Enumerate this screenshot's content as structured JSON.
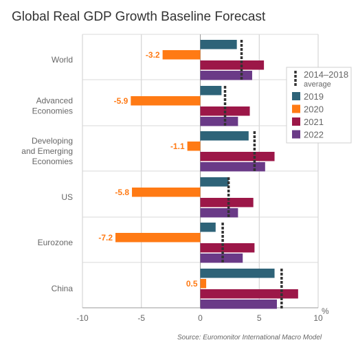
{
  "chart_data": {
    "type": "bar",
    "orientation": "horizontal",
    "title": "Global Real GDP Growth Baseline Forecast",
    "categories": [
      "World",
      "Advanced Economies",
      "Developing and Emerging Economies",
      "US",
      "Eurozone",
      "China"
    ],
    "category_display": [
      [
        "World"
      ],
      [
        "Advanced",
        "Economies"
      ],
      [
        "Developing",
        "and Emerging",
        "Economies"
      ],
      [
        "US"
      ],
      [
        "Eurozone"
      ],
      [
        "China"
      ]
    ],
    "series": [
      {
        "name": "2019",
        "color": "#2e6378",
        "values": [
          3.1,
          1.8,
          4.1,
          2.4,
          1.3,
          6.3
        ]
      },
      {
        "name": "2020",
        "color": "#ff7a14",
        "values": [
          -3.2,
          -5.9,
          -1.1,
          -5.8,
          -7.2,
          0.5
        ]
      },
      {
        "name": "2021",
        "color": "#9c1748",
        "values": [
          5.4,
          4.2,
          6.3,
          4.5,
          4.6,
          8.3
        ]
      },
      {
        "name": "2022",
        "color": "#6a3a87",
        "values": [
          4.4,
          3.2,
          5.5,
          3.2,
          3.6,
          6.5
        ]
      }
    ],
    "average": {
      "name": "2014–2018 average",
      "values": [
        3.5,
        2.1,
        4.6,
        2.4,
        1.9,
        6.9
      ],
      "color": "#333333"
    },
    "data_labels": {
      "series": "2020",
      "values": [
        "-3.2",
        "-5.9",
        "-1.1",
        "-5.8",
        "-7.2",
        "0.5"
      ]
    },
    "xlim": [
      -10,
      10
    ],
    "xticks": [
      "-10",
      "-5",
      "0",
      "5",
      "10"
    ],
    "xunit": "%",
    "grid": true,
    "legend_position": "right"
  },
  "source": "Source: Euromonitor International Macro Model"
}
